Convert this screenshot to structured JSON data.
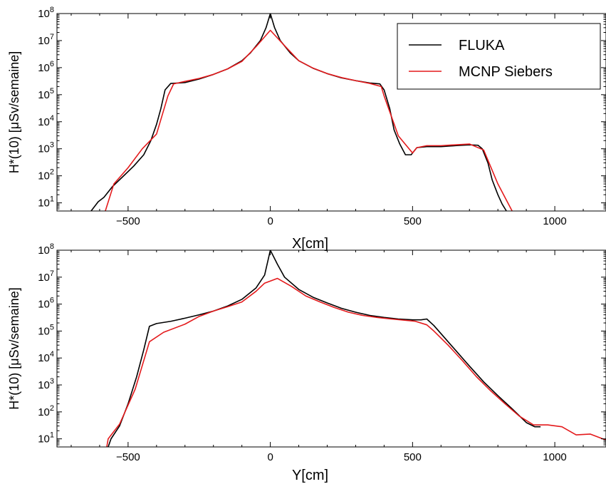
{
  "chart_data": [
    {
      "type": "line",
      "xlabel": "X[cm]",
      "ylabel": "H*(10) [μSv/semaine]",
      "xscale": "linear",
      "yscale": "log",
      "xlim": [
        -750,
        1180
      ],
      "ylim": [
        5,
        100000000
      ],
      "xticks": [
        -500,
        0,
        500,
        1000
      ],
      "xtick_labels": [
        "−500",
        "0",
        "500",
        "1000"
      ],
      "yticks": [
        10,
        100,
        1000,
        10000,
        100000,
        1000000,
        10000000,
        100000000
      ],
      "ytick_labels": [
        {
          "base": "10",
          "exp": "1"
        },
        {
          "base": "10",
          "exp": "2"
        },
        {
          "base": "10",
          "exp": "3"
        },
        {
          "base": "10",
          "exp": "4"
        },
        {
          "base": "10",
          "exp": "5"
        },
        {
          "base": "10",
          "exp": "6"
        },
        {
          "base": "10",
          "exp": "7"
        },
        {
          "base": "10",
          "exp": "8"
        }
      ],
      "grid": false,
      "legend": {
        "location": "top-right",
        "entries": [
          "FLUKA",
          "MCNP Siebers"
        ]
      },
      "series": [
        {
          "name": "FLUKA",
          "color": "#000000",
          "points": [
            [
              -630,
              5
            ],
            [
              -605,
              11
            ],
            [
              -585,
              16
            ],
            [
              -555,
              40
            ],
            [
              -520,
              90
            ],
            [
              -480,
              230
            ],
            [
              -445,
              600
            ],
            [
              -420,
              2000
            ],
            [
              -400,
              8000
            ],
            [
              -385,
              30000
            ],
            [
              -370,
              150000
            ],
            [
              -350,
              260000
            ],
            [
              -300,
              280000
            ],
            [
              -250,
              380000
            ],
            [
              -200,
              560000
            ],
            [
              -150,
              900000
            ],
            [
              -100,
              1800000
            ],
            [
              -70,
              3500000
            ],
            [
              -35,
              10000000
            ],
            [
              -15,
              30000000
            ],
            [
              0,
              100000000
            ],
            [
              15,
              30000000
            ],
            [
              35,
              10000000
            ],
            [
              70,
              3500000
            ],
            [
              100,
              1800000
            ],
            [
              150,
              950000
            ],
            [
              200,
              600000
            ],
            [
              250,
              420000
            ],
            [
              300,
              330000
            ],
            [
              350,
              270000
            ],
            [
              385,
              250000
            ],
            [
              400,
              150000
            ],
            [
              420,
              30000
            ],
            [
              435,
              5000
            ],
            [
              455,
              1500
            ],
            [
              475,
              600
            ],
            [
              495,
              600
            ],
            [
              515,
              1100
            ],
            [
              550,
              1200
            ],
            [
              600,
              1200
            ],
            [
              650,
              1300
            ],
            [
              700,
              1400
            ],
            [
              730,
              1350
            ],
            [
              745,
              1000
            ],
            [
              765,
              300
            ],
            [
              780,
              70
            ],
            [
              800,
              20
            ],
            [
              815,
              9
            ],
            [
              830,
              5
            ]
          ]
        },
        {
          "name": "MCNP Siebers",
          "color": "#e41a1c",
          "points": [
            [
              -580,
              5
            ],
            [
              -550,
              50
            ],
            [
              -500,
              200
            ],
            [
              -450,
              1000
            ],
            [
              -400,
              3500
            ],
            [
              -360,
              90000
            ],
            [
              -340,
              250000
            ],
            [
              -300,
              310000
            ],
            [
              -250,
              400000
            ],
            [
              -200,
              560000
            ],
            [
              -150,
              900000
            ],
            [
              -100,
              1700000
            ],
            [
              -50,
              6000000
            ],
            [
              0,
              24000000
            ],
            [
              50,
              6500000
            ],
            [
              100,
              1800000
            ],
            [
              150,
              960000
            ],
            [
              200,
              600000
            ],
            [
              250,
              430000
            ],
            [
              300,
              330000
            ],
            [
              350,
              260000
            ],
            [
              390,
              200000
            ],
            [
              400,
              90000
            ],
            [
              450,
              3000
            ],
            [
              500,
              700
            ],
            [
              515,
              1100
            ],
            [
              550,
              1300
            ],
            [
              600,
              1300
            ],
            [
              650,
              1400
            ],
            [
              700,
              1500
            ],
            [
              750,
              900
            ],
            [
              800,
              50
            ],
            [
              850,
              5
            ]
          ]
        }
      ]
    },
    {
      "type": "line",
      "xlabel": "Y[cm]",
      "ylabel": "H*(10) [μSv/semaine]",
      "xscale": "linear",
      "yscale": "log",
      "xlim": [
        -750,
        1180
      ],
      "ylim": [
        5,
        100000000
      ],
      "xticks": [
        -500,
        0,
        500,
        1000
      ],
      "xtick_labels": [
        "−500",
        "0",
        "500",
        "1000"
      ],
      "yticks": [
        10,
        100,
        1000,
        10000,
        100000,
        1000000,
        10000000,
        100000000
      ],
      "ytick_labels": [
        {
          "base": "10",
          "exp": "1"
        },
        {
          "base": "10",
          "exp": "2"
        },
        {
          "base": "10",
          "exp": "3"
        },
        {
          "base": "10",
          "exp": "4"
        },
        {
          "base": "10",
          "exp": "5"
        },
        {
          "base": "10",
          "exp": "6"
        },
        {
          "base": "10",
          "exp": "7"
        },
        {
          "base": "10",
          "exp": "8"
        }
      ],
      "grid": false,
      "series": [
        {
          "name": "FLUKA",
          "color": "#000000",
          "points": [
            [
              -570,
              5
            ],
            [
              -560,
              10
            ],
            [
              -530,
              30
            ],
            [
              -500,
              200
            ],
            [
              -470,
              2000
            ],
            [
              -445,
              20000
            ],
            [
              -425,
              150000
            ],
            [
              -400,
              190000
            ],
            [
              -350,
              230000
            ],
            [
              -300,
              300000
            ],
            [
              -250,
              400000
            ],
            [
              -200,
              550000
            ],
            [
              -150,
              850000
            ],
            [
              -100,
              1500000
            ],
            [
              -50,
              4000000
            ],
            [
              -20,
              12000000
            ],
            [
              0,
              100000000
            ],
            [
              25,
              30000000
            ],
            [
              50,
              10000000
            ],
            [
              100,
              3500000
            ],
            [
              150,
              1800000
            ],
            [
              200,
              1100000
            ],
            [
              250,
              700000
            ],
            [
              300,
              500000
            ],
            [
              350,
              380000
            ],
            [
              400,
              320000
            ],
            [
              450,
              280000
            ],
            [
              500,
              260000
            ],
            [
              530,
              260000
            ],
            [
              550,
              280000
            ],
            [
              575,
              160000
            ],
            [
              600,
              80000
            ],
            [
              650,
              20000
            ],
            [
              700,
              5000
            ],
            [
              750,
              1300
            ],
            [
              800,
              400
            ],
            [
              850,
              130
            ],
            [
              900,
              40
            ],
            [
              930,
              28
            ],
            [
              950,
              28
            ]
          ]
        },
        {
          "name": "MCNP Siebers",
          "color": "#e41a1c",
          "points": [
            [
              -575,
              5
            ],
            [
              -570,
              10
            ],
            [
              -530,
              35
            ],
            [
              -475,
              700
            ],
            [
              -425,
              40000
            ],
            [
              -375,
              90000
            ],
            [
              -300,
              180000
            ],
            [
              -250,
              350000
            ],
            [
              -200,
              550000
            ],
            [
              -150,
              800000
            ],
            [
              -100,
              1200000
            ],
            [
              -50,
              3000000
            ],
            [
              -20,
              6000000
            ],
            [
              25,
              9000000
            ],
            [
              75,
              4500000
            ],
            [
              125,
              2000000
            ],
            [
              175,
              1200000
            ],
            [
              225,
              750000
            ],
            [
              275,
              500000
            ],
            [
              325,
              380000
            ],
            [
              375,
              320000
            ],
            [
              425,
              280000
            ],
            [
              475,
              250000
            ],
            [
              510,
              230000
            ],
            [
              550,
              170000
            ],
            [
              575,
              100000
            ],
            [
              625,
              30000
            ],
            [
              675,
              8000
            ],
            [
              725,
              2000
            ],
            [
              775,
              600
            ],
            [
              825,
              200
            ],
            [
              875,
              70
            ],
            [
              925,
              33
            ],
            [
              975,
              33
            ],
            [
              1025,
              28
            ],
            [
              1075,
              14
            ],
            [
              1125,
              15
            ],
            [
              1180,
              9
            ]
          ]
        }
      ]
    }
  ]
}
